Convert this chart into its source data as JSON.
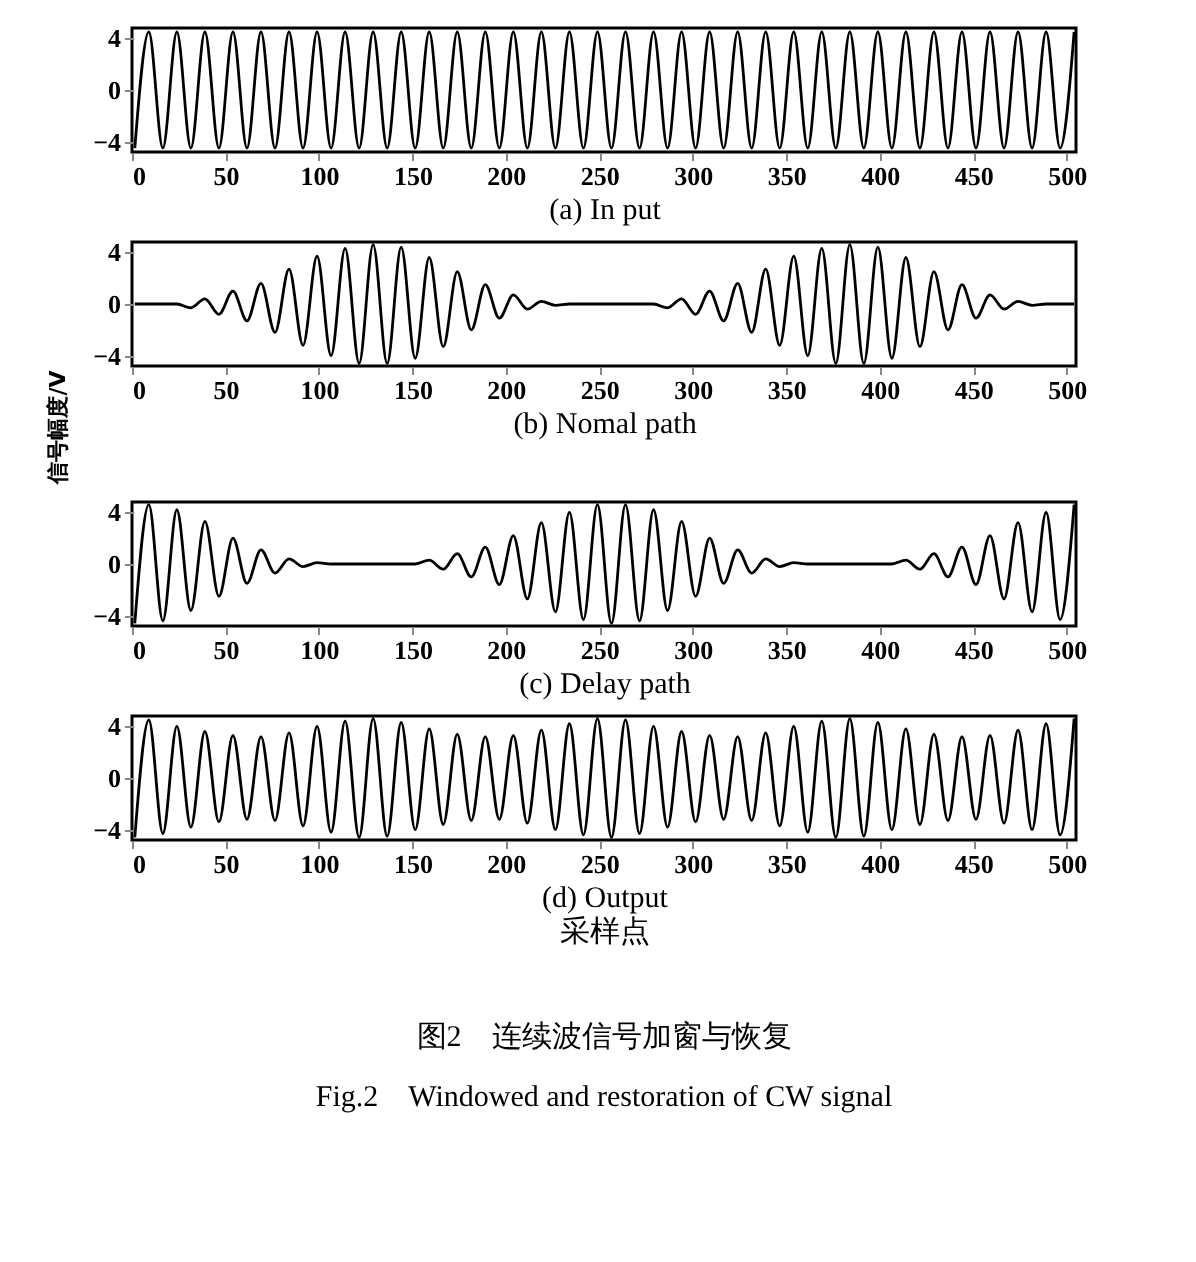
{
  "chart_data": [
    {
      "type": "line",
      "title": "(a) In put",
      "color": "#000000",
      "line_style": "solid",
      "grid": false,
      "xlim": [
        0,
        505
      ],
      "ylim": [
        -4.8,
        4.8
      ],
      "xticks": [
        0,
        50,
        100,
        150,
        200,
        250,
        300,
        350,
        400,
        450,
        500
      ],
      "yticks": [
        -4,
        0,
        4
      ],
      "x": [
        1.5,
        9,
        16.5,
        24,
        31.5,
        39,
        46.5,
        54,
        61.5,
        69,
        76.5,
        84,
        91.5,
        99,
        106.5,
        114,
        121.5,
        129,
        136.5,
        144,
        151.5,
        159,
        166.5,
        174,
        181.5,
        189,
        196.5,
        204,
        211.5,
        219,
        226.5,
        234,
        241.5,
        249,
        256.5,
        264,
        271.5,
        279,
        286.5,
        294,
        301.5,
        309,
        316.5,
        324,
        331.5,
        339,
        346.5,
        354,
        361.5,
        369,
        376.5,
        384,
        391.5,
        399,
        406.5,
        414,
        421.5,
        429,
        436.5,
        444,
        451.5,
        459,
        466.5,
        474,
        481.5,
        489,
        496.5,
        504
      ],
      "values": [
        -4.5,
        4.5,
        -4.5,
        4.5,
        -4.5,
        4.5,
        -4.5,
        4.5,
        -4.5,
        4.5,
        -4.5,
        4.5,
        -4.5,
        4.5,
        -4.5,
        4.5,
        -4.5,
        4.5,
        -4.5,
        4.5,
        -4.5,
        4.5,
        -4.5,
        4.5,
        -4.5,
        4.5,
        -4.5,
        4.5,
        -4.5,
        4.5,
        -4.5,
        4.5,
        -4.5,
        4.5,
        -4.5,
        4.5,
        -4.5,
        4.5,
        -4.5,
        4.5,
        -4.5,
        4.5,
        -4.5,
        4.5,
        -4.5,
        4.5,
        -4.5,
        4.5,
        -4.5,
        4.5,
        -4.5,
        4.5,
        -4.5,
        4.5,
        -4.5,
        4.5,
        -4.5,
        4.5,
        -4.5,
        4.5,
        -4.5,
        4.5,
        -4.5,
        4.5,
        -4.5,
        4.5,
        -4.5,
        4.5
      ]
    },
    {
      "type": "line",
      "title": "(b) Nomal path",
      "ylabel": "信号幅度/V",
      "color": "#000000",
      "line_style": "solid",
      "grid": false,
      "xlim": [
        0,
        505
      ],
      "ylim": [
        -4.8,
        4.8
      ],
      "xticks": [
        0,
        50,
        100,
        150,
        200,
        250,
        300,
        350,
        400,
        450,
        500
      ],
      "yticks": [
        -4,
        0,
        4
      ],
      "x": [
        1.5,
        9,
        16.5,
        24,
        31.5,
        39,
        46.5,
        54,
        61.5,
        69,
        76.5,
        84,
        91.5,
        99,
        106.5,
        114,
        121.5,
        129,
        136.5,
        144,
        151.5,
        159,
        166.5,
        174,
        181.5,
        189,
        196.5,
        204,
        211.5,
        219,
        226.5,
        234,
        241.5,
        249,
        256.5,
        264,
        271.5,
        279,
        286.5,
        294,
        301.5,
        309,
        316.5,
        324,
        331.5,
        339,
        346.5,
        354,
        361.5,
        369,
        376.5,
        384,
        391.5,
        399,
        406.5,
        414,
        421.5,
        429,
        436.5,
        444,
        451.5,
        459,
        466.5,
        474,
        481.5,
        489,
        496.5,
        504
      ],
      "values": [
        0,
        0,
        0,
        0,
        -0.3,
        0.4,
        -0.8,
        1.0,
        -1.3,
        1.6,
        -2.2,
        2.7,
        -3.2,
        3.7,
        -4.0,
        4.3,
        -4.6,
        4.6,
        -4.6,
        4.4,
        -4.2,
        3.6,
        -3.3,
        2.5,
        -2.0,
        1.5,
        -1.1,
        0.7,
        -0.4,
        0.2,
        -0.1,
        0,
        0,
        0,
        0,
        0,
        0,
        0,
        -0.3,
        0.4,
        -0.8,
        1.0,
        -1.3,
        1.6,
        -2.2,
        2.7,
        -3.2,
        3.7,
        -4.0,
        4.3,
        -4.6,
        4.6,
        -4.6,
        4.4,
        -4.2,
        3.6,
        -3.3,
        2.5,
        -2.0,
        1.5,
        -1.1,
        0.7,
        -0.4,
        0.2,
        -0.1,
        0,
        0,
        0
      ]
    },
    {
      "type": "line",
      "title": "(c) Delay path",
      "color": "#000000",
      "line_style": "solid",
      "grid": false,
      "xlim": [
        0,
        505
      ],
      "ylim": [
        -4.8,
        4.8
      ],
      "xticks": [
        0,
        50,
        100,
        150,
        200,
        250,
        300,
        350,
        400,
        450,
        500
      ],
      "yticks": [
        -4,
        0,
        4
      ],
      "x": [
        1.5,
        9,
        16.5,
        24,
        31.5,
        39,
        46.5,
        54,
        61.5,
        69,
        76.5,
        84,
        91.5,
        99,
        106.5,
        114,
        121.5,
        129,
        136.5,
        144,
        151.5,
        159,
        166.5,
        174,
        181.5,
        189,
        196.5,
        204,
        211.5,
        219,
        226.5,
        234,
        241.5,
        249,
        256.5,
        264,
        271.5,
        279,
        286.5,
        294,
        301.5,
        309,
        316.5,
        324,
        331.5,
        339,
        346.5,
        354,
        361.5,
        369,
        376.5,
        384,
        391.5,
        399,
        406.5,
        414,
        421.5,
        429,
        436.5,
        444,
        451.5,
        459,
        466.5,
        474,
        481.5,
        489,
        496.5,
        504
      ],
      "values": [
        -4.6,
        4.6,
        -4.4,
        4.2,
        -3.6,
        3.3,
        -2.5,
        2.0,
        -1.5,
        1.1,
        -0.7,
        0.4,
        -0.2,
        0.1,
        0,
        0,
        0,
        0,
        0,
        0,
        0,
        0.3,
        -0.4,
        0.8,
        -1.0,
        1.3,
        -1.6,
        2.2,
        -2.7,
        3.2,
        -3.7,
        4.0,
        -4.3,
        4.6,
        -4.6,
        4.6,
        -4.4,
        4.2,
        -3.6,
        3.3,
        -2.5,
        2.0,
        -1.5,
        1.1,
        -0.7,
        0.4,
        -0.2,
        0.1,
        0,
        0,
        0,
        0,
        0,
        0,
        0,
        0.3,
        -0.4,
        0.8,
        -1.0,
        1.3,
        -1.6,
        2.2,
        -2.7,
        3.2,
        -3.7,
        4.0,
        -4.3,
        4.6
      ]
    },
    {
      "type": "line",
      "title": "(d) Output",
      "xlabel": "采样点",
      "color": "#000000",
      "line_style": "solid",
      "grid": false,
      "xlim": [
        0,
        505
      ],
      "ylim": [
        -4.8,
        4.8
      ],
      "xticks": [
        0,
        50,
        100,
        150,
        200,
        250,
        300,
        350,
        400,
        450,
        500
      ],
      "yticks": [
        -4,
        0,
        4
      ],
      "annotations": [
        "图2　连续波信号加窗与恢复",
        "Fig.2　Windowed and restoration of CW signal"
      ],
      "x": [
        1.5,
        9,
        16.5,
        24,
        31.5,
        39,
        46.5,
        54,
        61.5,
        69,
        76.5,
        84,
        91.5,
        99,
        106.5,
        114,
        121.5,
        129,
        136.5,
        144,
        151.5,
        159,
        166.5,
        174,
        181.5,
        189,
        196.5,
        204,
        211.5,
        219,
        226.5,
        234,
        241.5,
        249,
        256.5,
        264,
        271.5,
        279,
        286.5,
        294,
        301.5,
        309,
        316.5,
        324,
        331.5,
        339,
        346.5,
        354,
        361.5,
        369,
        376.5,
        384,
        391.5,
        399,
        406.5,
        414,
        421.5,
        429,
        436.5,
        444,
        451.5,
        459,
        466.5,
        474,
        481.5,
        489,
        496.5,
        504
      ],
      "values": [
        -4.6,
        4.5,
        -4.3,
        4.0,
        -3.8,
        3.6,
        -3.4,
        3.3,
        -3.2,
        3.2,
        -3.3,
        3.5,
        -3.7,
        4.0,
        -4.2,
        4.4,
        -4.6,
        4.6,
        -4.5,
        4.3,
        -4.0,
        3.8,
        -3.6,
        3.4,
        -3.3,
        3.2,
        -3.2,
        3.3,
        -3.5,
        3.7,
        -4.0,
        4.2,
        -4.4,
        4.6,
        -4.6,
        4.5,
        -4.3,
        4.0,
        -3.8,
        3.6,
        -3.4,
        3.3,
        -3.2,
        3.2,
        -3.3,
        3.5,
        -3.7,
        4.0,
        -4.2,
        4.4,
        -4.6,
        4.6,
        -4.5,
        4.3,
        -4.0,
        3.8,
        -3.6,
        3.4,
        -3.3,
        3.2,
        -3.2,
        3.3,
        -3.5,
        3.7,
        -4.0,
        4.2,
        -4.4,
        4.6
      ]
    }
  ]
}
